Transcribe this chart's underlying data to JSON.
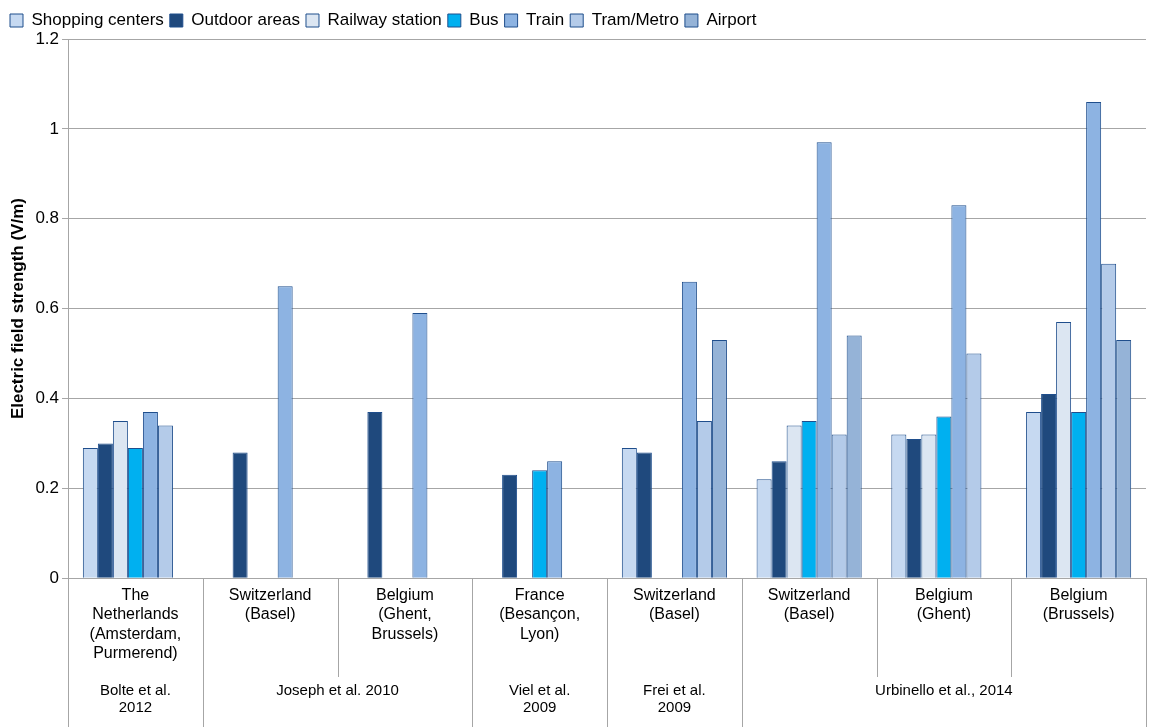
{
  "chart_data": {
    "type": "bar",
    "ylabel": "Electric field strength (V/m)",
    "categories": [
      "The Netherlands (Amsterdam, Purmerend)",
      "Switzerland (Basel)",
      "Belgium (Ghent, Brussels)",
      "France (Besançon, Lyon)",
      "Switzerland (Basel)",
      "Switzerland (Basel)",
      "Belgium (Ghent)",
      "Belgium (Brussels)"
    ],
    "series": [
      {
        "name": "Shopping centers",
        "color": "#c6d9f1",
        "values": [
          0.29,
          null,
          null,
          null,
          0.29,
          0.22,
          0.32,
          0.37
        ]
      },
      {
        "name": "Outdoor areas",
        "color": "#1f497d",
        "values": [
          0.3,
          0.28,
          0.37,
          0.23,
          0.28,
          0.26,
          0.31,
          0.41
        ]
      },
      {
        "name": "Railway station",
        "color": "#dce6f2",
        "values": [
          0.35,
          null,
          null,
          null,
          null,
          0.34,
          0.32,
          0.57
        ]
      },
      {
        "name": "Bus",
        "color": "#00b0f0",
        "values": [
          0.29,
          null,
          null,
          0.24,
          null,
          0.35,
          0.36,
          0.37
        ]
      },
      {
        "name": "Train",
        "color": "#8db3e2",
        "values": [
          0.37,
          0.65,
          0.59,
          0.26,
          0.66,
          0.97,
          0.83,
          1.06
        ]
      },
      {
        "name": "Tram/Metro",
        "color": "#b4cbe9",
        "values": [
          0.34,
          null,
          null,
          null,
          0.35,
          0.32,
          0.5,
          0.7
        ]
      },
      {
        "name": "Airport",
        "color": "#95b3d7",
        "values": [
          null,
          null,
          null,
          null,
          0.53,
          0.54,
          null,
          0.53
        ]
      }
    ],
    "ylim": [
      0,
      1.2
    ],
    "yticks": [
      0,
      0.2,
      0.4,
      0.6,
      0.8,
      1,
      1.2
    ],
    "grid": "y",
    "legend": "top left",
    "annotations": [
      "Bolte et al. 2012",
      "Joseph et al. 2010",
      "Viel et al. 2009",
      "Frei et al. 2009",
      "Urbinello et al., 2014"
    ]
  }
}
